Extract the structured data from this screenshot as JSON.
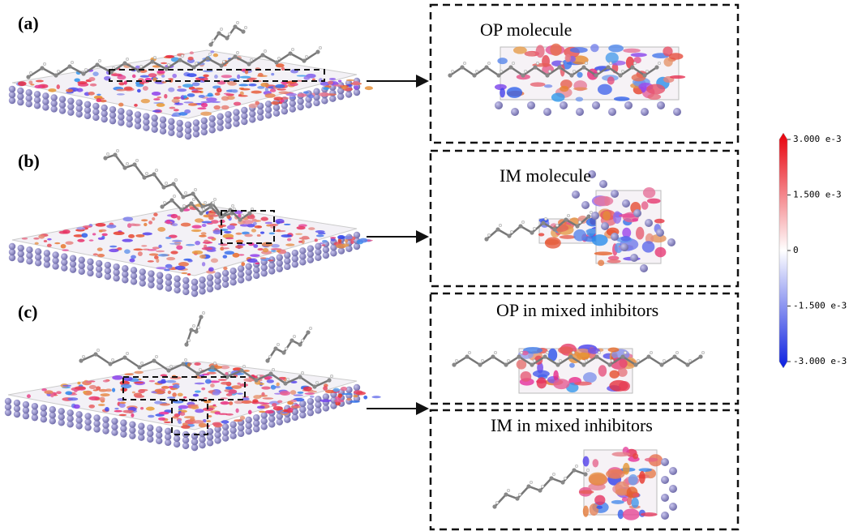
{
  "panels": [
    {
      "label": "(a)",
      "detail": "OP molecule"
    },
    {
      "label": "(b)",
      "detail": "IM molecule"
    },
    {
      "label": "(c)",
      "details": [
        "OP in mixed inhibitors",
        "IM in mixed inhibitors"
      ]
    }
  ],
  "colorbar": {
    "lim": [
      -0.003,
      0.003
    ],
    "ticks": [
      {
        "value": 0.003,
        "label": "3.000 e-3"
      },
      {
        "value": 0.0015,
        "label": "1.500 e-3"
      },
      0,
      {
        "value": -0.0015,
        "label": "-1.500 e-3"
      },
      {
        "value": -0.003,
        "label": "-3.000 e-3"
      }
    ]
  }
}
